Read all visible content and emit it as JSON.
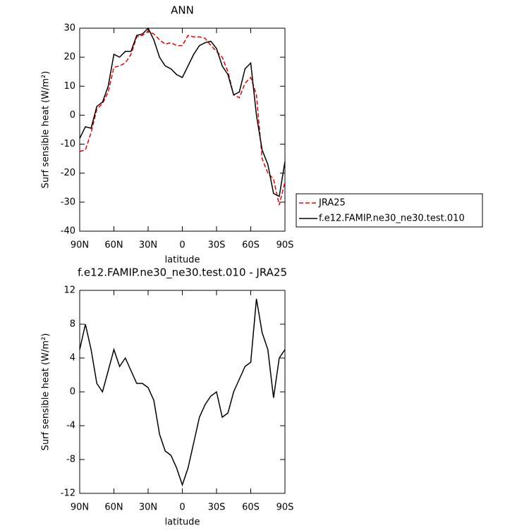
{
  "chart_data": [
    {
      "type": "line",
      "title": "ANN",
      "xlabel": "latitude",
      "ylabel": "Surf sensible heat (W/m²)",
      "x": [
        90,
        85,
        80,
        75,
        70,
        65,
        60,
        55,
        50,
        45,
        40,
        35,
        30,
        25,
        20,
        15,
        10,
        5,
        0,
        -5,
        -10,
        -15,
        -20,
        -25,
        -30,
        -35,
        -40,
        -45,
        -50,
        -55,
        -60,
        -65,
        -70,
        -75,
        -80,
        -85,
        -90
      ],
      "series": [
        {
          "name": "JRA25",
          "color": "#e00000",
          "style": "dashed",
          "values": [
            -12.5,
            -12,
            -6,
            2,
            4,
            8,
            16.5,
            17,
            18,
            21,
            27,
            27.5,
            29,
            28,
            26,
            24.5,
            25,
            24,
            24,
            27.5,
            27,
            27,
            26.5,
            24,
            22,
            20,
            15,
            7,
            6,
            11,
            13,
            7,
            -15,
            -20,
            -22,
            -31,
            -23
          ]
        },
        {
          "name": "f.e12.FAMIP.ne30_ne30.test.010",
          "color": "#000000",
          "style": "solid",
          "values": [
            -8,
            -4,
            -4.5,
            3,
            4.5,
            10,
            21,
            20,
            22,
            22,
            27.5,
            28,
            30,
            26,
            20,
            17,
            16,
            14,
            13,
            17,
            21,
            24,
            25,
            25.5,
            23,
            17,
            14,
            7,
            8,
            16,
            18,
            0,
            -12,
            -17,
            -27,
            -28,
            -16
          ]
        }
      ],
      "xlim": [
        90,
        -90
      ],
      "xticks": [
        {
          "value": 90,
          "label": "90N"
        },
        {
          "value": 60,
          "label": "60N"
        },
        {
          "value": 30,
          "label": "30N"
        },
        0,
        {
          "value": -30,
          "label": "30S"
        },
        {
          "value": -60,
          "label": "60S"
        },
        {
          "value": -90,
          "label": "90S"
        }
      ],
      "ylim": [
        -40,
        30
      ],
      "yticks": [
        -40,
        -30,
        -20,
        -10,
        0,
        10,
        20,
        30
      ]
    },
    {
      "type": "line",
      "title": "f.e12.FAMIP.ne30_ne30.test.010 - JRA25",
      "xlabel": "latitude",
      "ylabel": "Surf sensible heat (W/m²)",
      "x": [
        90,
        85,
        80,
        75,
        70,
        65,
        60,
        55,
        50,
        45,
        40,
        35,
        30,
        25,
        20,
        15,
        10,
        5,
        0,
        -5,
        -10,
        -15,
        -20,
        -25,
        -30,
        -35,
        -40,
        -45,
        -50,
        -55,
        -60,
        -65,
        -70,
        -75,
        -80,
        -85,
        -90
      ],
      "series": [
        {
          "color": "#000000",
          "style": "solid",
          "values": [
            5,
            8,
            5,
            1,
            0,
            2.5,
            5,
            3,
            4,
            2.5,
            1,
            1,
            0.5,
            -1,
            -5,
            -7,
            -7.5,
            -9,
            -11,
            -9,
            -6,
            -3,
            -1.5,
            -0.5,
            0,
            -3,
            -2.5,
            0,
            1.5,
            3,
            3.5,
            11,
            7,
            5,
            -0.7,
            4,
            5
          ]
        }
      ],
      "xlim": [
        90,
        -90
      ],
      "xticks": [
        {
          "value": 90,
          "label": "90N"
        },
        {
          "value": 60,
          "label": "60N"
        },
        {
          "value": 30,
          "label": "30N"
        },
        0,
        {
          "value": -30,
          "label": "30S"
        },
        {
          "value": -60,
          "label": "60S"
        },
        {
          "value": -90,
          "label": "90S"
        }
      ],
      "ylim": [
        -12,
        12
      ],
      "yticks": [
        -12,
        -8,
        -4,
        0,
        4,
        8,
        12
      ]
    }
  ]
}
